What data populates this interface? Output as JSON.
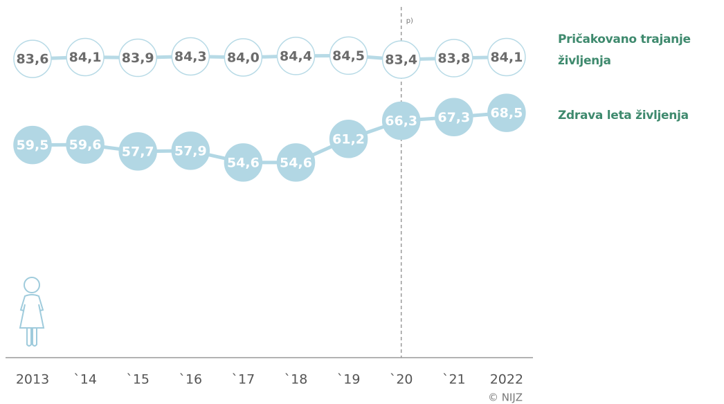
{
  "chart_data": {
    "type": "line",
    "categories": [
      "2013",
      "`14",
      "`15",
      "`16",
      "`17",
      "`18",
      "`19",
      "`20",
      "`21",
      "2022"
    ],
    "series": [
      {
        "name": "Pričakovano trajanje življenja",
        "color": "#b7dae6",
        "fill": "#ffffff",
        "label_color": "#6b6b6b",
        "values": [
          83.6,
          84.1,
          83.9,
          84.3,
          84.0,
          84.4,
          84.5,
          83.4,
          83.8,
          84.1
        ],
        "value_labels": [
          "83,6",
          "84,1",
          "83,9",
          "84,3",
          "84,0",
          "84,4",
          "84,5",
          "83,4",
          "83,8",
          "84,1"
        ]
      },
      {
        "name": "Zdrava leta življenja",
        "color": "#b2d7e4",
        "fill": "#b2d7e4",
        "label_color": "#ffffff",
        "values": [
          59.5,
          59.6,
          57.7,
          57.9,
          54.6,
          54.6,
          61.2,
          66.3,
          67.3,
          68.5
        ],
        "value_labels": [
          "59,5",
          "59,6",
          "57,7",
          "57,9",
          "54,6",
          "54,6",
          "61,2",
          "66,3",
          "67,3",
          "68,5"
        ]
      }
    ],
    "ylim": [
      0,
      90
    ],
    "annotations": [
      {
        "text": "p)",
        "x": "`20"
      }
    ],
    "source": "© NIJZ"
  }
}
